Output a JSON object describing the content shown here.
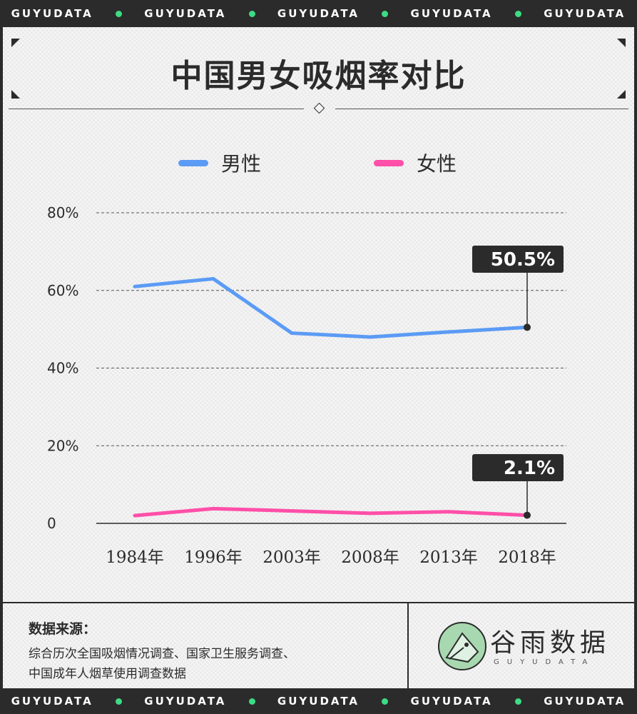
{
  "banner": {
    "items": [
      "GUYUDATA",
      "GUYUDATA",
      "GUYUDATA",
      "GUYUDATA",
      "GUYUDATA"
    ],
    "dot_color": "#3ddc84"
  },
  "title": "中国男女吸烟率对比",
  "legend": [
    {
      "label": "男性",
      "color": "#5b9bf5"
    },
    {
      "label": "女性",
      "color": "#ff4fa8"
    }
  ],
  "chart_data": {
    "type": "line",
    "categories": [
      "1984年",
      "1996年",
      "2003年",
      "2008年",
      "2013年",
      "2018年"
    ],
    "series": [
      {
        "name": "男性",
        "color": "#5b9bf5",
        "values": [
          61.0,
          63.0,
          49.0,
          48.0,
          49.3,
          50.5
        ]
      },
      {
        "name": "女性",
        "color": "#ff4fa8",
        "values": [
          2.0,
          3.8,
          3.2,
          2.6,
          3.0,
          2.1
        ]
      }
    ],
    "y_ticks": [
      "80%",
      "60%",
      "40%",
      "20%",
      "0"
    ],
    "y_tick_values": [
      80,
      60,
      40,
      20,
      0
    ],
    "ylim": [
      0,
      80
    ],
    "grid": true,
    "callouts": [
      {
        "series": "男性",
        "text": "50.5%"
      },
      {
        "series": "女性",
        "text": "2.1%"
      }
    ]
  },
  "footer": {
    "source_title": "数据来源：",
    "source_lines": [
      "综合历次全国吸烟情况调查、国家卫生服务调查、",
      "中国成年人烟草使用调查数据"
    ],
    "logo_name": "谷雨数据",
    "logo_sub": "GUYUDATA"
  }
}
